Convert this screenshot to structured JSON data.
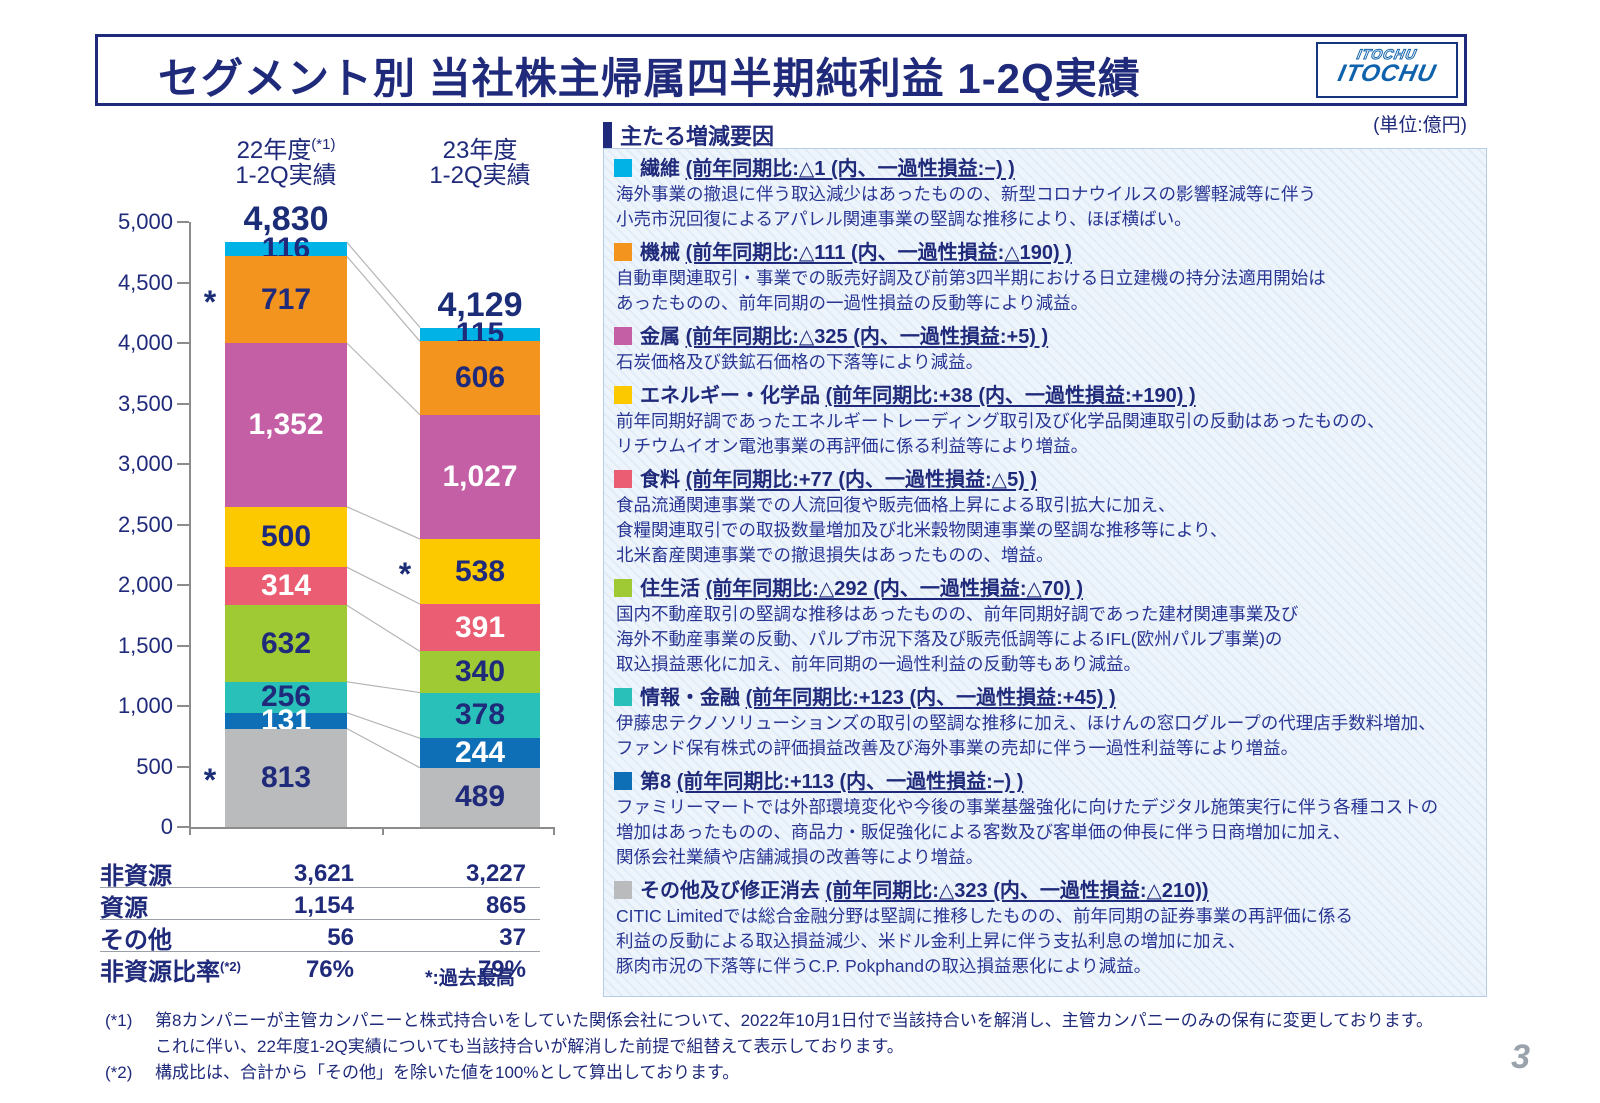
{
  "title": {
    "text": "セグメント別  当社株主帰属四半期純利益  1-2Q実績"
  },
  "logo": {
    "text": "ITOCHU"
  },
  "unit_label": "(単位:億円)",
  "chart_data": {
    "type": "bar",
    "variant": "stacked-comparison",
    "unit": "億円",
    "categories": [
      "22年度 1-2Q実績",
      "23年度 1-2Q実績"
    ],
    "col_headers": [
      {
        "year": "22年度",
        "note": "(*1)",
        "period": "1-2Q実績"
      },
      {
        "year": "23年度",
        "note": "",
        "period": "1-2Q実績"
      }
    ],
    "totals": [
      4830,
      4129
    ],
    "total_labels": [
      "4,830",
      "4,129"
    ],
    "ylim": [
      0,
      5000
    ],
    "ytick_step": 500,
    "ytick_labels": [
      "5,000",
      "4,500",
      "4,000",
      "3,500",
      "3,000",
      "2,500",
      "2,000",
      "1,500",
      "1,000",
      "500",
      "0"
    ],
    "grid": false,
    "series_top_to_bottom": [
      {
        "name": "繊維",
        "color": "#00b2e5",
        "label_color": "navy",
        "values": [
          116,
          115
        ],
        "labels": [
          "116",
          "115"
        ]
      },
      {
        "name": "機械",
        "color": "#f2941d",
        "label_color": "navy",
        "values": [
          717,
          606
        ],
        "labels": [
          "717",
          "606"
        ]
      },
      {
        "name": "金属",
        "color": "#c55fa5",
        "label_color": "white",
        "values": [
          1352,
          1027
        ],
        "labels": [
          "1,352",
          "1,027"
        ]
      },
      {
        "name": "エネルギー・化学品",
        "color": "#fcc800",
        "label_color": "navy",
        "values": [
          500,
          538
        ],
        "labels": [
          "500",
          "538"
        ]
      },
      {
        "name": "食料",
        "color": "#ea5d73",
        "label_color": "white",
        "values": [
          314,
          391
        ],
        "labels": [
          "314",
          "391"
        ]
      },
      {
        "name": "住生活",
        "color": "#9fca33",
        "label_color": "navy",
        "values": [
          632,
          340
        ],
        "labels": [
          "632",
          "340"
        ]
      },
      {
        "name": "情報・金融",
        "color": "#29c0ba",
        "label_color": "navy",
        "values": [
          256,
          378
        ],
        "labels": [
          "256",
          "378"
        ]
      },
      {
        "name": "第8",
        "color": "#0e6fb7",
        "label_color": "white",
        "values": [
          131,
          244
        ],
        "labels": [
          "131",
          "244"
        ]
      },
      {
        "name": "その他及び修正消去",
        "color": "#b9bbbd",
        "label_color": "navy",
        "values": [
          813,
          489
        ],
        "labels": [
          "813",
          "489"
        ]
      }
    ],
    "record_high_markers": [
      {
        "bar": 0,
        "segment": "機械"
      },
      {
        "bar": 0,
        "segment": "その他及び修正消去"
      },
      {
        "bar": 1,
        "segment": "エネルギー・化学品"
      }
    ],
    "record_high_note": "*:過去最高"
  },
  "summary_table": {
    "rows": [
      {
        "label": "非資源",
        "sup": "",
        "values": [
          "3,621",
          "3,227"
        ]
      },
      {
        "label": "資源",
        "sup": "",
        "values": [
          "1,154",
          "865"
        ]
      },
      {
        "label": "その他",
        "sup": "",
        "values": [
          "56",
          "37"
        ]
      },
      {
        "label": "非資源比率",
        "sup": "(*2)",
        "values": [
          "76%",
          "79%"
        ]
      }
    ]
  },
  "factors_panel": {
    "heading": "主たる増減要因",
    "items": [
      {
        "name": "繊維",
        "color": "#00b2e5",
        "detail": "(前年同期比:△1 (内、一過性損益:−) )",
        "body": "海外事業の撤退に伴う取込減少はあったものの、新型コロナウイルスの影響軽減等に伴う\n小売市況回復によるアパレル関連事業の堅調な推移により、ほぼ横ばい。"
      },
      {
        "name": "機械",
        "color": "#f2941d",
        "detail": "(前年同期比:△111 (内、一過性損益:△190) )",
        "body": "自動車関連取引・事業での販売好調及び前第3四半期における日立建機の持分法適用開始は\nあったものの、前年同期の一過性損益の反動等により減益。"
      },
      {
        "name": "金属",
        "color": "#c55fa5",
        "detail": "(前年同期比:△325 (内、一過性損益:+5) )",
        "body": "石炭価格及び鉄鉱石価格の下落等により減益。"
      },
      {
        "name": "エネルギー・化学品",
        "color": "#fcc800",
        "detail": "(前年同期比:+38 (内、一過性損益:+190) )",
        "body": "前年同期好調であったエネルギートレーディング取引及び化学品関連取引の反動はあったものの、\nリチウムイオン電池事業の再評価に係る利益等により増益。"
      },
      {
        "name": "食料",
        "color": "#ea5d73",
        "detail": "(前年同期比:+77 (内、一過性損益:△5) )",
        "body": "食品流通関連事業での人流回復や販売価格上昇による取引拡大に加え、\n食糧関連取引での取扱数量増加及び北米穀物関連事業の堅調な推移等により、\n北米畜産関連事業での撤退損失はあったものの、増益。"
      },
      {
        "name": "住生活",
        "color": "#9fca33",
        "detail": "(前年同期比:△292 (内、一過性損益:△70) )",
        "body": "国内不動産取引の堅調な推移はあったものの、前年同期好調であった建材関連事業及び\n海外不動産事業の反動、パルプ市況下落及び販売低調等によるIFL(欧州パルプ事業)の\n取込損益悪化に加え、前年同期の一過性利益の反動等もあり減益。"
      },
      {
        "name": "情報・金融",
        "color": "#29c0ba",
        "detail": "(前年同期比:+123 (内、一過性損益:+45) )",
        "body": "伊藤忠テクノソリューションズの取引の堅調な推移に加え、ほけんの窓口グループの代理店手数料増加、\nファンド保有株式の評価損益改善及び海外事業の売却に伴う一過性利益等により増益。"
      },
      {
        "name": "第8",
        "color": "#0e6fb7",
        "detail": "(前年同期比:+113 (内、一過性損益:−) )",
        "body": "ファミリーマートでは外部環境変化や今後の事業基盤強化に向けたデジタル施策実行に伴う各種コストの\n増加はあったものの、商品力・販促強化による客数及び客単価の伸長に伴う日商増加に加え、\n関係会社業績や店舗減損の改善等により増益。"
      },
      {
        "name": "その他及び修正消去",
        "color": "#b9bbbd",
        "detail": "(前年同期比:△323 (内、一過性損益:△210))",
        "body": "CITIC Limitedでは総合金融分野は堅調に推移したものの、前年同期の証券事業の再評価に係る\n利益の反動による取込損益減少、米ドル金利上昇に伴う支払利息の増加に加え、\n豚肉市況の下落等に伴うC.P. Pokphandの取込損益悪化により減益。"
      }
    ]
  },
  "footnotes": [
    {
      "tag": "(*1)",
      "text": "第8カンパニーが主管カンパニーと株式持合いをしていた関係会社について、2022年10月1日付で当該持合いを解消し、主管カンパニーのみの保有に変更しております。\nこれに伴い、22年度1-2Q実績についても当該持合いが解消した前提で組替えて表示しております。"
    },
    {
      "tag": "(*2)",
      "text": "構成比は、合計から「その他」を除いた値を100%として算出しております。"
    }
  ],
  "page_number": "3",
  "colors": {
    "navy_text": "#1f2a7a",
    "logo_blue": "#0f62ac",
    "axis_gray": "#8c8c8c",
    "connector_gray": "#b5b5b5",
    "panel_border": "#b5cde6"
  }
}
